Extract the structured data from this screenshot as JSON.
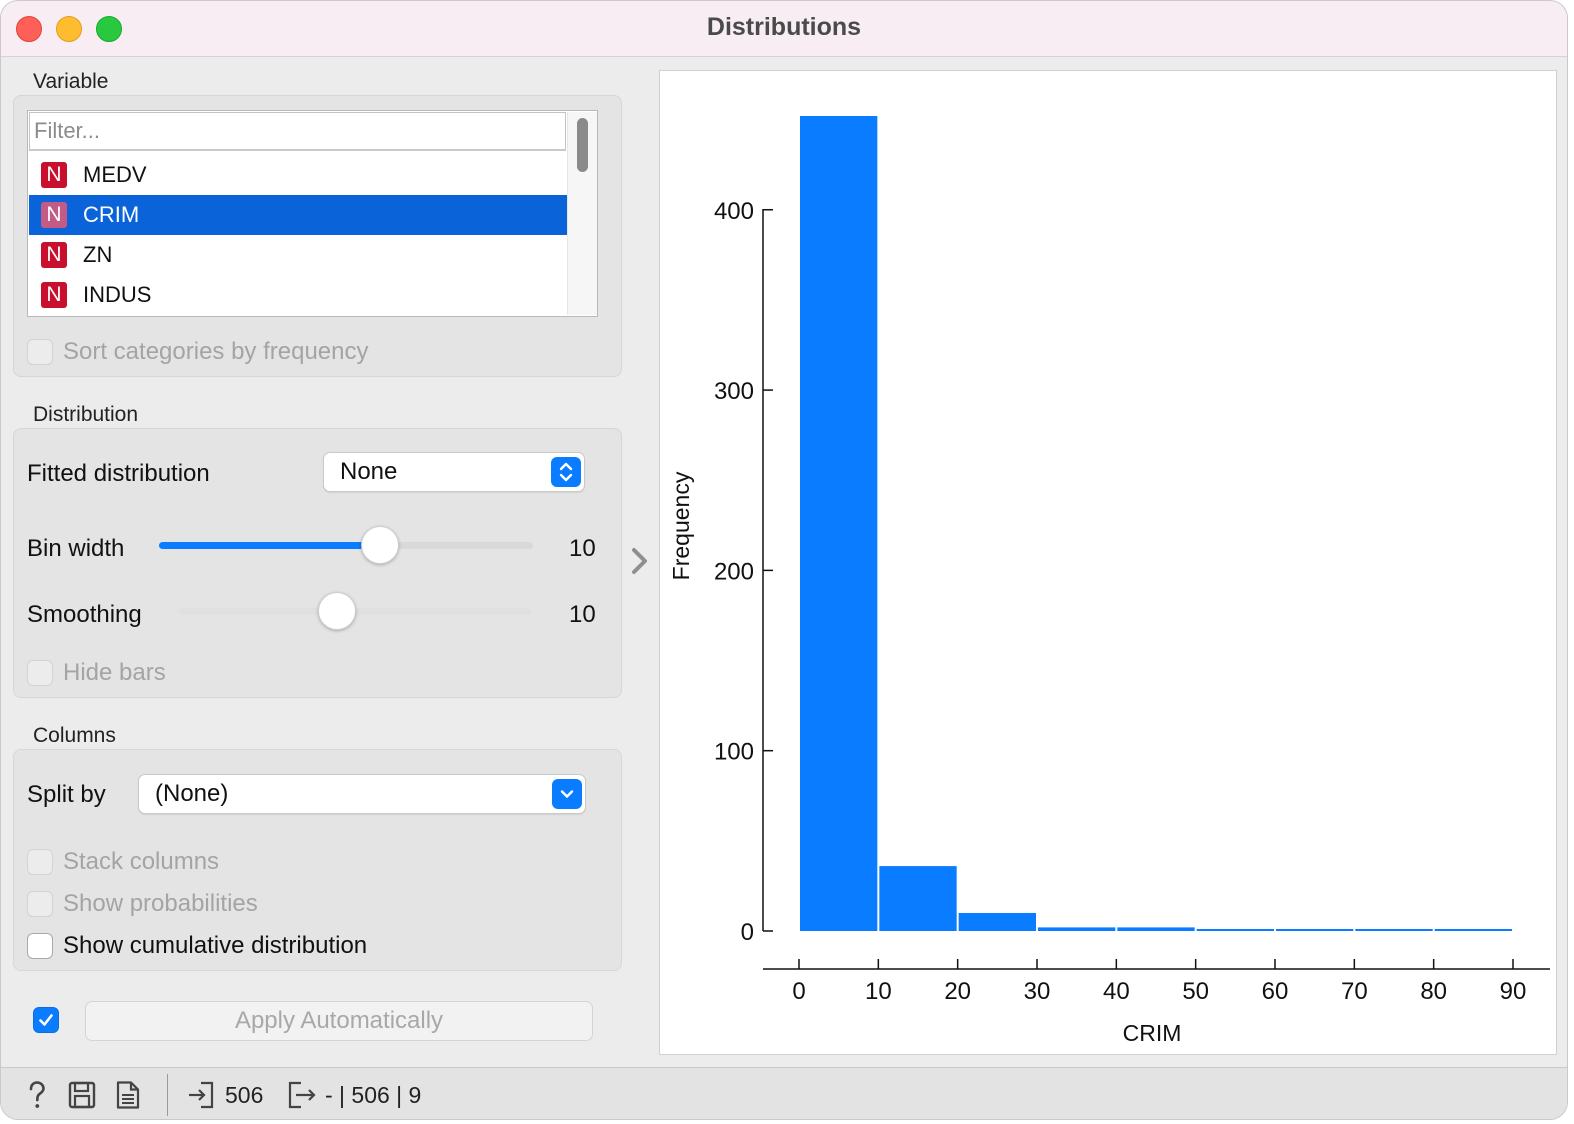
{
  "window": {
    "title": "Distributions"
  },
  "variable": {
    "group_label": "Variable",
    "filter_placeholder": "Filter...",
    "items": [
      {
        "type_icon": "N",
        "name": "MEDV",
        "selected": false
      },
      {
        "type_icon": "N",
        "name": "CRIM",
        "selected": true
      },
      {
        "type_icon": "N",
        "name": "ZN",
        "selected": false
      },
      {
        "type_icon": "N",
        "name": "INDUS",
        "selected": false
      }
    ],
    "sort_label": "Sort categories by frequency",
    "sort_checked": false
  },
  "distribution": {
    "group_label": "Distribution",
    "fitted_label": "Fitted distribution",
    "fitted_value": "None",
    "bin_width_label": "Bin width",
    "bin_width_value": "10",
    "bin_width_fraction": 0.59,
    "smoothing_label": "Smoothing",
    "smoothing_value": "10",
    "smoothing_fraction": 0.45,
    "hide_bars_label": "Hide bars",
    "hide_bars_checked": false
  },
  "columns": {
    "group_label": "Columns",
    "split_label": "Split by",
    "split_value": "(None)",
    "stack_label": "Stack columns",
    "probabilities_label": "Show probabilities",
    "cumulative_label": "Show cumulative distribution",
    "cumulative_checked": false
  },
  "apply": {
    "label": "Apply Automatically",
    "auto_checked": true
  },
  "status": {
    "input_count": "506",
    "output_summary": "- | 506 | 9"
  },
  "colors": {
    "accent": "#0a7cff",
    "bar": "#0a7cff",
    "selection": "#0a63d8",
    "numeric_icon": "#c8102e"
  },
  "chart_data": {
    "type": "bar",
    "xlabel": "CRIM",
    "ylabel": "Frequency",
    "bin_edges": [
      0,
      10,
      20,
      30,
      40,
      50,
      60,
      70,
      80,
      90
    ],
    "values": [
      452,
      36,
      10,
      2,
      2,
      1,
      1,
      1,
      1
    ],
    "x_ticks": [
      "0",
      "10",
      "20",
      "30",
      "40",
      "50",
      "60",
      "70",
      "80",
      "90"
    ],
    "y_ticks": [
      "0",
      "100",
      "200",
      "300",
      "400"
    ],
    "ylim": [
      0,
      452
    ],
    "xlim": [
      0,
      90
    ]
  }
}
